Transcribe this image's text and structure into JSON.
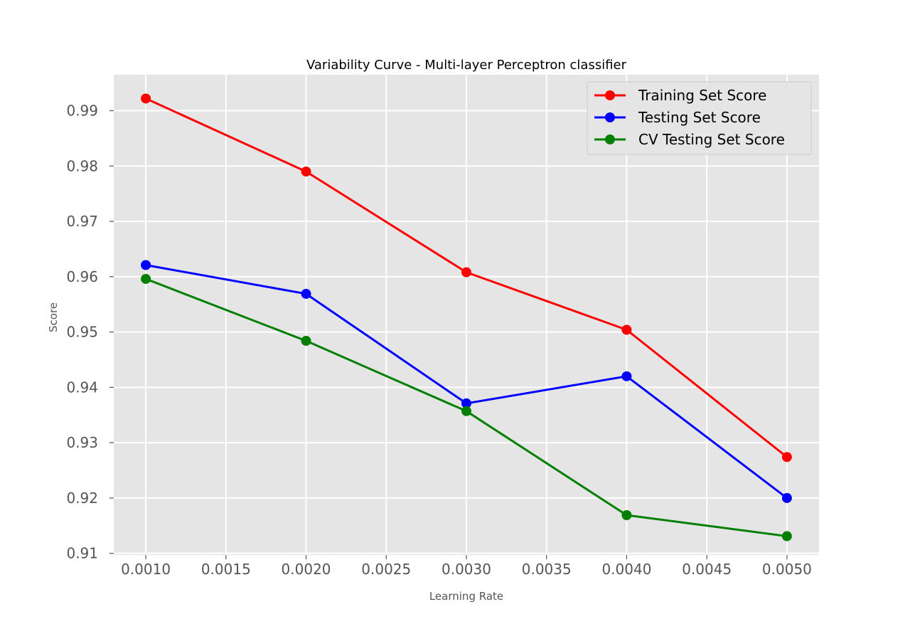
{
  "chart_data": {
    "type": "line",
    "title": "Variability Curve - Multi-layer Perceptron classifier",
    "xlabel": "Learning Rate",
    "ylabel": "Score",
    "x": [
      0.001,
      0.002,
      0.003,
      0.004,
      0.005
    ],
    "xlim": [
      0.0008,
      0.0052
    ],
    "ylim": [
      0.9097,
      0.9965
    ],
    "xticks": [
      "0.0010",
      "0.0015",
      "0.0020",
      "0.0025",
      "0.0030",
      "0.0035",
      "0.0040",
      "0.0045",
      "0.0050"
    ],
    "yticks": [
      "0.91",
      "0.92",
      "0.93",
      "0.94",
      "0.95",
      "0.96",
      "0.97",
      "0.98",
      "0.99"
    ],
    "grid": true,
    "legend_position": "top-right",
    "series": [
      {
        "name": "Training Set Score",
        "color": "#ff0000",
        "values": [
          0.9922,
          0.979,
          0.9608,
          0.9504,
          0.9274
        ]
      },
      {
        "name": "Testing Set Score",
        "color": "#0000ff",
        "values": [
          0.9621,
          0.9569,
          0.9371,
          0.942,
          0.92
        ]
      },
      {
        "name": "CV Testing Set Score",
        "color": "#008000",
        "values": [
          0.9596,
          0.9484,
          0.9357,
          0.9169,
          0.9131
        ]
      }
    ]
  }
}
